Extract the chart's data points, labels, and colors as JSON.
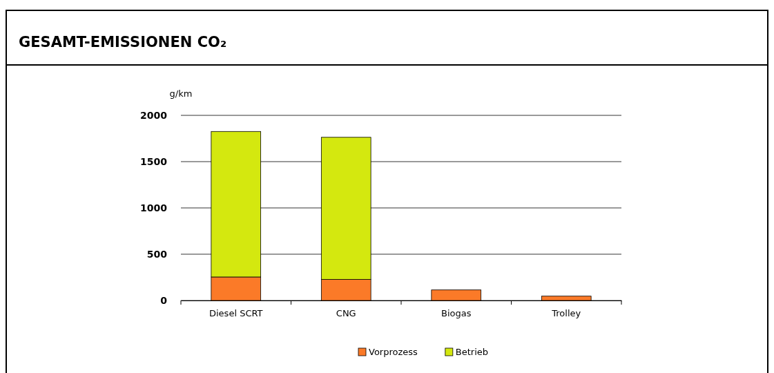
{
  "chart_data": {
    "type": "bar",
    "title": "GESAMT-EMISSIONEN CO₂",
    "ylabel": "g/km",
    "categories": [
      "Diesel SCRT",
      "CNG",
      "Biogas",
      "Trolley"
    ],
    "stacked": true,
    "series": [
      {
        "name": "Vorprozess",
        "color": "#fb7a28",
        "values": [
          254,
          227,
          114,
          47
        ]
      },
      {
        "name": "Betrieb",
        "color": "#d4e80f",
        "values": [
          1572,
          1536,
          0,
          0
        ]
      }
    ],
    "ylim": [
      0,
      2000
    ],
    "yticks": [
      0,
      500,
      1000,
      1500,
      2000
    ],
    "grid": "y",
    "legend": "bottom"
  }
}
